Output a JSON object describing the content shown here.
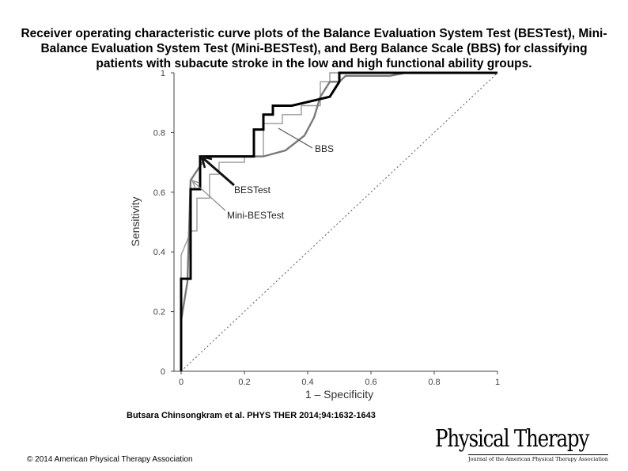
{
  "title": "Receiver operating characteristic curve plots of the Balance Evaluation System Test (BESTest), Mini-Balance Evaluation System Test (Mini-BESTest), and Berg Balance Scale (BBS) for classifying patients with subacute stroke in the low and high functional ability groups.",
  "citation": "Butsara Chinsongkram et al. PHYS THER 2014;94:1632-1643",
  "copyright": "© 2014 American Physical Therapy Association",
  "logo": {
    "main": "Physical Therapy",
    "sub": "Journal of the American Physical Therapy Association"
  },
  "chart_data": {
    "type": "line",
    "xlabel": "1 – Specificity",
    "ylabel": "Sensitivity",
    "xlim": [
      0,
      1
    ],
    "ylim": [
      0,
      1
    ],
    "x_ticks": [
      "0",
      "0.2",
      "0.4",
      "0.6",
      "0.8",
      "1"
    ],
    "y_ticks": [
      "0",
      "0.2",
      "0.4",
      "0.6",
      "0.8",
      "1"
    ],
    "grid": false,
    "colors": {
      "BESTest": "#000000",
      "Mini-BESTest": "#999999",
      "BBS": "#7a7a7a",
      "reference": "#555555"
    },
    "series": [
      {
        "name": "BESTest",
        "points": [
          [
            0,
            0
          ],
          [
            0,
            0.31
          ],
          [
            0.03,
            0.31
          ],
          [
            0.03,
            0.61
          ],
          [
            0.06,
            0.61
          ],
          [
            0.06,
            0.72
          ],
          [
            0.23,
            0.72
          ],
          [
            0.23,
            0.81
          ],
          [
            0.26,
            0.81
          ],
          [
            0.26,
            0.86
          ],
          [
            0.29,
            0.86
          ],
          [
            0.29,
            0.89
          ],
          [
            0.35,
            0.89
          ],
          [
            0.47,
            0.92
          ],
          [
            0.5,
            0.97
          ],
          [
            0.5,
            1
          ],
          [
            1,
            1
          ]
        ]
      },
      {
        "name": "Mini-BESTest",
        "points": [
          [
            0,
            0
          ],
          [
            0,
            0.39
          ],
          [
            0.02,
            0.44
          ],
          [
            0.03,
            0.47
          ],
          [
            0.05,
            0.47
          ],
          [
            0.05,
            0.58
          ],
          [
            0.09,
            0.58
          ],
          [
            0.09,
            0.66
          ],
          [
            0.12,
            0.66
          ],
          [
            0.12,
            0.7
          ],
          [
            0.2,
            0.7
          ],
          [
            0.2,
            0.72
          ],
          [
            0.26,
            0.72
          ],
          [
            0.26,
            0.83
          ],
          [
            0.32,
            0.83
          ],
          [
            0.32,
            0.86
          ],
          [
            0.38,
            0.86
          ],
          [
            0.38,
            0.89
          ],
          [
            0.44,
            0.89
          ],
          [
            0.44,
            0.97
          ],
          [
            0.47,
            0.97
          ],
          [
            0.47,
            1
          ],
          [
            1,
            1
          ]
        ]
      },
      {
        "name": "BBS",
        "points": [
          [
            0,
            0
          ],
          [
            0,
            0.17
          ],
          [
            0.02,
            0.3
          ],
          [
            0.03,
            0.64
          ],
          [
            0.08,
            0.72
          ],
          [
            0.26,
            0.72
          ],
          [
            0.33,
            0.74
          ],
          [
            0.39,
            0.79
          ],
          [
            0.42,
            0.85
          ],
          [
            0.44,
            0.92
          ],
          [
            0.47,
            0.97
          ],
          [
            0.5,
            0.97
          ],
          [
            0.52,
            0.99
          ],
          [
            0.66,
            0.99
          ],
          [
            0.71,
            1
          ],
          [
            1,
            1
          ]
        ]
      }
    ],
    "reference_line": [
      [
        0,
        0
      ],
      [
        1,
        1
      ]
    ],
    "annotations": [
      {
        "text": "BBS",
        "target": "BBS"
      },
      {
        "text": "BESTest",
        "target": "BESTest"
      },
      {
        "text": "Mini-BESTest",
        "target": "Mini-BESTest"
      }
    ]
  }
}
